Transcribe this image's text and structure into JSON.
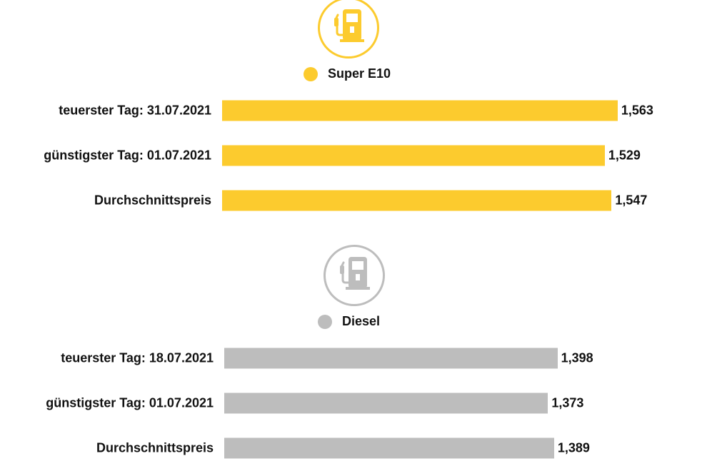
{
  "chart_data": [
    {
      "type": "bar",
      "orientation": "horizontal",
      "title": "Super E10",
      "icon": "fuel-pump-icon",
      "color": "#fccb2e",
      "categories": [
        "teuerster Tag: 31.07.2021",
        "günstigster Tag: 01.07.2021",
        "Durchschnittspreis"
      ],
      "values": [
        1.563,
        1.529,
        1.547
      ],
      "value_labels": [
        "1,563",
        "1,529",
        "1,547"
      ],
      "xlim": [
        0.516,
        1.6
      ]
    },
    {
      "type": "bar",
      "orientation": "horizontal",
      "title": "Diesel",
      "icon": "fuel-pump-icon",
      "color": "#bdbdbd",
      "categories": [
        "teuerster Tag: 18.07.2021",
        "günstigster Tag: 01.07.2021",
        "Durchschnittspreis"
      ],
      "values": [
        1.398,
        1.373,
        1.389
      ],
      "value_labels": [
        "1,398",
        "1,373",
        "1,389"
      ],
      "xlim": [
        0.516,
        1.6
      ]
    }
  ]
}
